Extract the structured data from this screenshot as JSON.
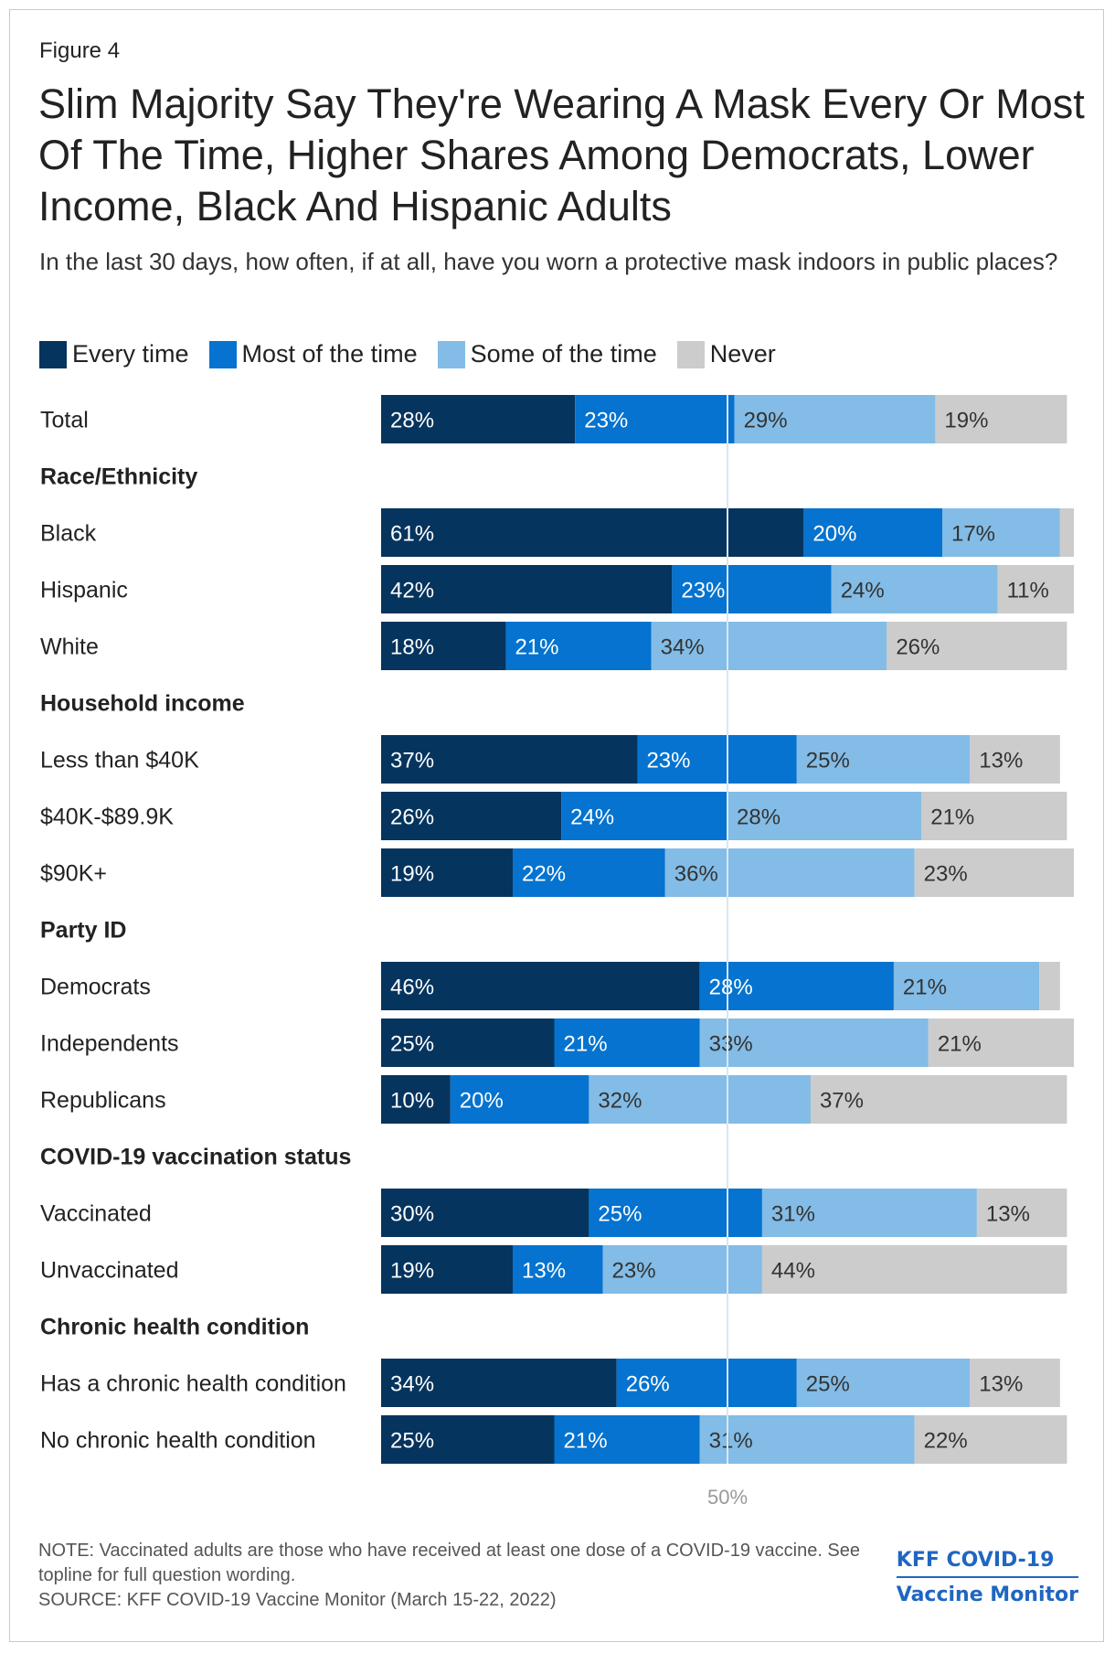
{
  "figure_label": "Figure 4",
  "title": "Slim Majority Say They're Wearing A Mask Every Or Most Of The Time, Higher Shares Among Democrats, Lower Income, Black And Hispanic Adults",
  "subtitle": "In the last 30 days, how often, if at all, have you worn a protective mask indoors in public places?",
  "colors": {
    "every_time": "#05345e",
    "most_of_the_time": "#0573cf",
    "some_of_the_time": "#83bce6",
    "never": "#cccccc",
    "reference_line": "#d9e6f2",
    "brand": "#1f66c1"
  },
  "chart_data": {
    "type": "bar",
    "orientation": "horizontal",
    "stacked": true,
    "series": [
      {
        "name": "Every time",
        "color": "#05345e",
        "label_color": "#ffffff"
      },
      {
        "name": "Most of the time",
        "color": "#0573cf",
        "label_color": "#ffffff"
      },
      {
        "name": "Some of the time",
        "color": "#83bce6",
        "label_color": "#333333"
      },
      {
        "name": "Never",
        "color": "#cccccc",
        "label_color": "#333333"
      }
    ],
    "rows": [
      {
        "kind": "bar",
        "label": "Total",
        "values": [
          28,
          23,
          29,
          19
        ],
        "labels": [
          "28%",
          "23%",
          "29%",
          "19%"
        ]
      },
      {
        "kind": "header",
        "label": "Race/Ethnicity"
      },
      {
        "kind": "bar",
        "label": "Black",
        "values": [
          61,
          20,
          17,
          2
        ],
        "labels": [
          "61%",
          "20%",
          "17%",
          ""
        ]
      },
      {
        "kind": "bar",
        "label": "Hispanic",
        "values": [
          42,
          23,
          24,
          11
        ],
        "labels": [
          "42%",
          "23%",
          "24%",
          "11%"
        ]
      },
      {
        "kind": "bar",
        "label": "White",
        "values": [
          18,
          21,
          34,
          26
        ],
        "labels": [
          "18%",
          "21%",
          "34%",
          "26%"
        ]
      },
      {
        "kind": "header",
        "label": "Household income"
      },
      {
        "kind": "bar",
        "label": "Less than $40K",
        "values": [
          37,
          23,
          25,
          13
        ],
        "labels": [
          "37%",
          "23%",
          "25%",
          "13%"
        ]
      },
      {
        "kind": "bar",
        "label": "$40K-$89.9K",
        "values": [
          26,
          24,
          28,
          21
        ],
        "labels": [
          "26%",
          "24%",
          "28%",
          "21%"
        ]
      },
      {
        "kind": "bar",
        "label": "$90K+",
        "values": [
          19,
          22,
          36,
          23
        ],
        "labels": [
          "19%",
          "22%",
          "36%",
          "23%"
        ]
      },
      {
        "kind": "header",
        "label": "Party ID"
      },
      {
        "kind": "bar",
        "label": "Democrats",
        "values": [
          46,
          28,
          21,
          3
        ],
        "labels": [
          "46%",
          "28%",
          "21%",
          ""
        ]
      },
      {
        "kind": "bar",
        "label": "Independents",
        "values": [
          25,
          21,
          33,
          21
        ],
        "labels": [
          "25%",
          "21%",
          "33%",
          "21%"
        ]
      },
      {
        "kind": "bar",
        "label": "Republicans",
        "values": [
          10,
          20,
          32,
          37
        ],
        "labels": [
          "10%",
          "20%",
          "32%",
          "37%"
        ]
      },
      {
        "kind": "header",
        "label": "COVID-19 vaccination status"
      },
      {
        "kind": "bar",
        "label": "Vaccinated",
        "values": [
          30,
          25,
          31,
          13
        ],
        "labels": [
          "30%",
          "25%",
          "31%",
          "13%"
        ]
      },
      {
        "kind": "bar",
        "label": "Unvaccinated",
        "values": [
          19,
          13,
          23,
          44
        ],
        "labels": [
          "19%",
          "13%",
          "23%",
          "44%"
        ]
      },
      {
        "kind": "header",
        "label": "Chronic health condition"
      },
      {
        "kind": "bar",
        "label": "Has a chronic health condition",
        "values": [
          34,
          26,
          25,
          13
        ],
        "labels": [
          "34%",
          "26%",
          "25%",
          "13%"
        ]
      },
      {
        "kind": "bar",
        "label": "No chronic health condition",
        "values": [
          25,
          21,
          31,
          22
        ],
        "labels": [
          "25%",
          "21%",
          "31%",
          "22%"
        ]
      }
    ],
    "reference_line": {
      "value": 50,
      "label": "50%"
    },
    "xlim": [
      0,
      100
    ]
  },
  "footer": {
    "note": "NOTE: Vaccinated adults are those who have received at least one dose of a COVID-19 vaccine. See topline for full question wording.",
    "source": "SOURCE: KFF COVID-19 Vaccine Monitor (March 15-22, 2022)",
    "brand_line1": "KFF COVID-19",
    "brand_line2": "Vaccine Monitor"
  }
}
